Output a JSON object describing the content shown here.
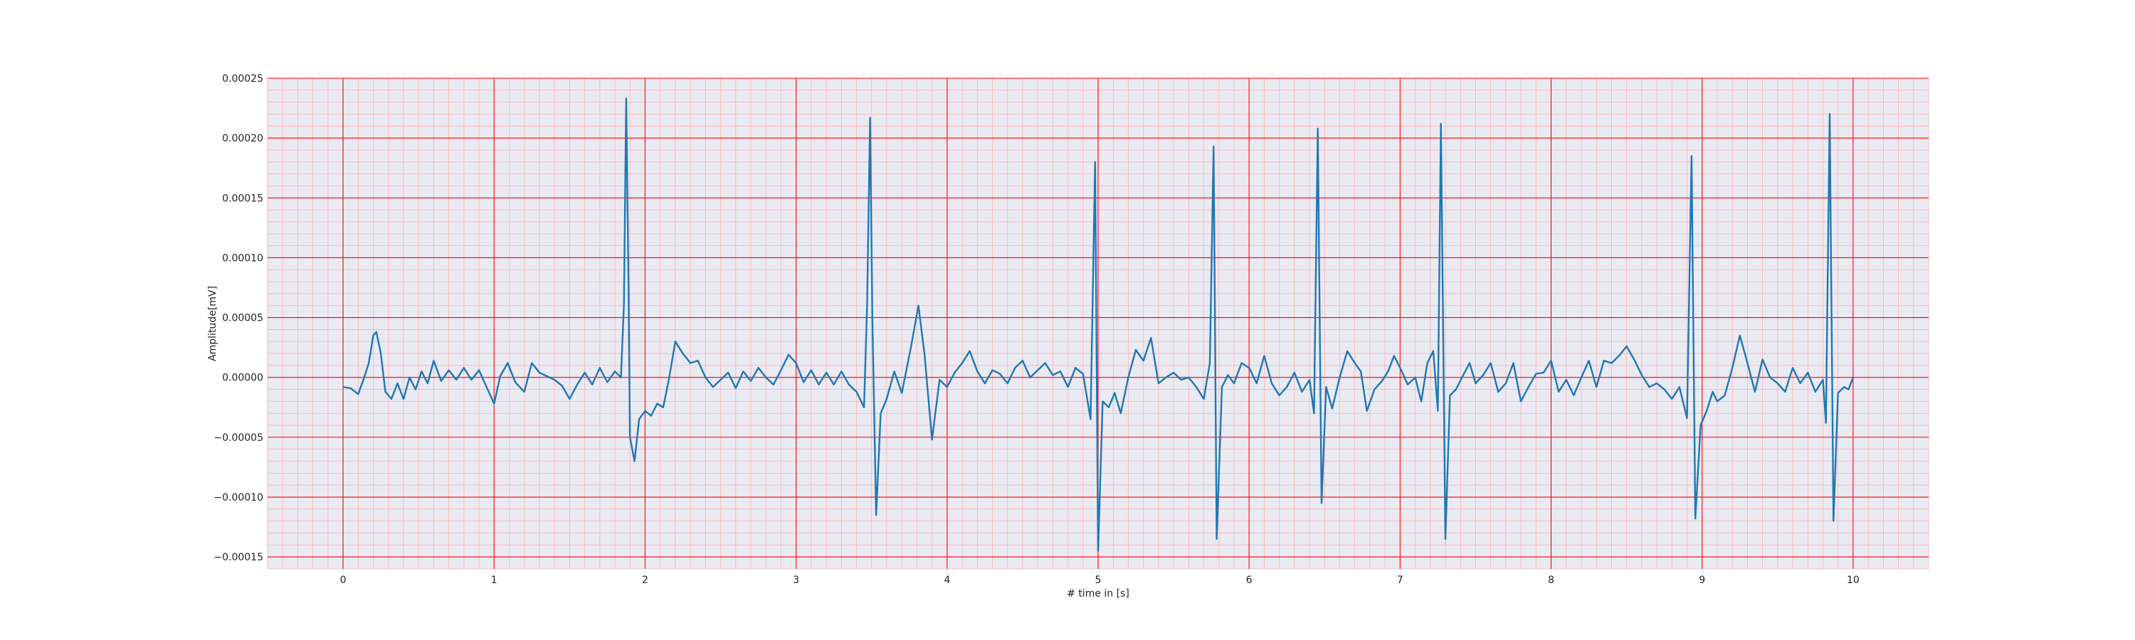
{
  "chart_data": {
    "type": "line",
    "title": "",
    "xlabel": "# time in [s]",
    "ylabel": "Amplitude[mV]",
    "xlim": [
      -0.5,
      10.5
    ],
    "ylim": [
      -0.00016,
      0.00025
    ],
    "x_ticks": [
      0,
      1,
      2,
      3,
      4,
      5,
      6,
      7,
      8,
      9,
      10
    ],
    "x_tick_labels": [
      "0",
      "1",
      "2",
      "3",
      "4",
      "5",
      "6",
      "7",
      "8",
      "9",
      "10"
    ],
    "y_ticks": [
      -0.00015,
      -0.0001,
      -5e-05,
      0,
      5e-05,
      0.0001,
      0.00015,
      0.0002,
      0.00025
    ],
    "y_tick_labels": [
      "−0.00015",
      "−0.00010",
      "−0.00005",
      "0.00000",
      "0.00005",
      "0.00010",
      "0.00015",
      "0.00020",
      "0.00025"
    ],
    "grid": "major+minor",
    "legend": "none",
    "series": [
      {
        "color": "#1f77b4",
        "points": [
          [
            0.0,
            -8e-06
          ],
          [
            0.05,
            -9e-06
          ],
          [
            0.1,
            -1.4e-05
          ],
          [
            0.14,
            0.0
          ],
          [
            0.17,
            1.2e-05
          ],
          [
            0.2,
            3.5e-05
          ],
          [
            0.22,
            3.8e-05
          ],
          [
            0.25,
            2e-05
          ],
          [
            0.28,
            -1.2e-05
          ],
          [
            0.32,
            -1.8e-05
          ],
          [
            0.36,
            -5e-06
          ],
          [
            0.4,
            -1.8e-05
          ],
          [
            0.44,
            0.0
          ],
          [
            0.48,
            -1e-05
          ],
          [
            0.52,
            5e-06
          ],
          [
            0.56,
            -5e-06
          ],
          [
            0.6,
            1.4e-05
          ],
          [
            0.65,
            -3e-06
          ],
          [
            0.7,
            6e-06
          ],
          [
            0.75,
            -2e-06
          ],
          [
            0.8,
            8e-06
          ],
          [
            0.85,
            -2e-06
          ],
          [
            0.9,
            6e-06
          ],
          [
            0.95,
            -8e-06
          ],
          [
            1.0,
            -2.2e-05
          ],
          [
            1.04,
            1e-06
          ],
          [
            1.09,
            1.2e-05
          ],
          [
            1.14,
            -4e-06
          ],
          [
            1.2,
            -1.2e-05
          ],
          [
            1.25,
            1.2e-05
          ],
          [
            1.3,
            4e-06
          ],
          [
            1.35,
            1e-06
          ],
          [
            1.4,
            -2e-06
          ],
          [
            1.45,
            -7e-06
          ],
          [
            1.5,
            -1.8e-05
          ],
          [
            1.55,
            -6e-06
          ],
          [
            1.6,
            4e-06
          ],
          [
            1.65,
            -6e-06
          ],
          [
            1.7,
            8e-06
          ],
          [
            1.75,
            -4e-06
          ],
          [
            1.8,
            5e-06
          ],
          [
            1.84,
            0.0
          ],
          [
            1.86,
            6e-05
          ],
          [
            1.875,
            0.000233
          ],
          [
            1.89,
            8e-05
          ],
          [
            1.9,
            -5e-05
          ],
          [
            1.93,
            -7e-05
          ],
          [
            1.96,
            -3.5e-05
          ],
          [
            2.0,
            -2.8e-05
          ],
          [
            2.04,
            -3.2e-05
          ],
          [
            2.08,
            -2.2e-05
          ],
          [
            2.12,
            -2.5e-05
          ],
          [
            2.16,
            0.0
          ],
          [
            2.2,
            3e-05
          ],
          [
            2.25,
            2e-05
          ],
          [
            2.3,
            1.2e-05
          ],
          [
            2.35,
            1.4e-05
          ],
          [
            2.4,
            0.0
          ],
          [
            2.45,
            -8e-06
          ],
          [
            2.5,
            -2e-06
          ],
          [
            2.55,
            4e-06
          ],
          [
            2.6,
            -9e-06
          ],
          [
            2.65,
            5e-06
          ],
          [
            2.7,
            -3e-06
          ],
          [
            2.75,
            8e-06
          ],
          [
            2.8,
            0.0
          ],
          [
            2.85,
            -6e-06
          ],
          [
            2.9,
            6e-06
          ],
          [
            2.95,
            1.9e-05
          ],
          [
            3.0,
            1.2e-05
          ],
          [
            3.05,
            -4e-06
          ],
          [
            3.1,
            6e-06
          ],
          [
            3.15,
            -6e-06
          ],
          [
            3.2,
            4e-06
          ],
          [
            3.25,
            -6e-06
          ],
          [
            3.3,
            5e-06
          ],
          [
            3.35,
            -6e-06
          ],
          [
            3.4,
            -1.2e-05
          ],
          [
            3.45,
            -2.5e-05
          ],
          [
            3.47,
            6e-05
          ],
          [
            3.49,
            0.000217
          ],
          [
            3.505,
            5e-05
          ],
          [
            3.53,
            -0.000115
          ],
          [
            3.56,
            -3e-05
          ],
          [
            3.6,
            -1.8e-05
          ],
          [
            3.65,
            5e-06
          ],
          [
            3.7,
            -1.3e-05
          ],
          [
            3.76,
            2.5e-05
          ],
          [
            3.81,
            6e-05
          ],
          [
            3.85,
            2e-05
          ],
          [
            3.9,
            -5.2e-05
          ],
          [
            3.95,
            -2e-06
          ],
          [
            4.0,
            -8e-06
          ],
          [
            4.05,
            4e-06
          ],
          [
            4.1,
            1.2e-05
          ],
          [
            4.15,
            2.2e-05
          ],
          [
            4.2,
            5e-06
          ],
          [
            4.25,
            -5e-06
          ],
          [
            4.3,
            6e-06
          ],
          [
            4.35,
            3e-06
          ],
          [
            4.4,
            -5e-06
          ],
          [
            4.45,
            8e-06
          ],
          [
            4.5,
            1.4e-05
          ],
          [
            4.55,
            0.0
          ],
          [
            4.6,
            6e-06
          ],
          [
            4.65,
            1.2e-05
          ],
          [
            4.7,
            2e-06
          ],
          [
            4.75,
            5e-06
          ],
          [
            4.8,
            -8e-06
          ],
          [
            4.85,
            8e-06
          ],
          [
            4.9,
            3e-06
          ],
          [
            4.95,
            -3.5e-05
          ],
          [
            4.98,
            0.00018
          ],
          [
            5.0,
            -0.000145
          ],
          [
            5.03,
            -2e-05
          ],
          [
            5.07,
            -2.5e-05
          ],
          [
            5.11,
            -1.3e-05
          ],
          [
            5.15,
            -3e-05
          ],
          [
            5.2,
            0.0
          ],
          [
            5.25,
            2.3e-05
          ],
          [
            5.3,
            1.4e-05
          ],
          [
            5.35,
            3.3e-05
          ],
          [
            5.4,
            -5e-06
          ],
          [
            5.45,
            0.0
          ],
          [
            5.5,
            4e-06
          ],
          [
            5.55,
            -2e-06
          ],
          [
            5.6,
            0.0
          ],
          [
            5.65,
            -8e-06
          ],
          [
            5.7,
            -1.8e-05
          ],
          [
            5.74,
            1.2e-05
          ],
          [
            5.765,
            0.000193
          ],
          [
            5.785,
            -0.000135
          ],
          [
            5.82,
            -8e-06
          ],
          [
            5.86,
            2e-06
          ],
          [
            5.9,
            -5e-06
          ],
          [
            5.95,
            1.2e-05
          ],
          [
            6.0,
            8e-06
          ],
          [
            6.05,
            -5e-06
          ],
          [
            6.1,
            1.8e-05
          ],
          [
            6.15,
            -5e-06
          ],
          [
            6.2,
            -1.5e-05
          ],
          [
            6.25,
            -8e-06
          ],
          [
            6.3,
            4e-06
          ],
          [
            6.35,
            -1.2e-05
          ],
          [
            6.4,
            -2e-06
          ],
          [
            6.43,
            -3e-05
          ],
          [
            6.455,
            0.000208
          ],
          [
            6.48,
            -0.000105
          ],
          [
            6.51,
            -8e-06
          ],
          [
            6.55,
            -2.6e-05
          ],
          [
            6.6,
            0.0
          ],
          [
            6.65,
            2.2e-05
          ],
          [
            6.7,
            1.2e-05
          ],
          [
            6.74,
            5e-06
          ],
          [
            6.78,
            -2.8e-05
          ],
          [
            6.83,
            -1e-05
          ],
          [
            6.88,
            -3e-06
          ],
          [
            6.92,
            5e-06
          ],
          [
            6.96,
            1.8e-05
          ],
          [
            7.0,
            8e-06
          ],
          [
            7.05,
            -6e-06
          ],
          [
            7.1,
            0.0
          ],
          [
            7.14,
            -2e-05
          ],
          [
            7.18,
            1.2e-05
          ],
          [
            7.22,
            2.2e-05
          ],
          [
            7.25,
            -2.8e-05
          ],
          [
            7.27,
            0.000212
          ],
          [
            7.3,
            -0.000135
          ],
          [
            7.33,
            -1.5e-05
          ],
          [
            7.37,
            -1e-05
          ],
          [
            7.41,
            0.0
          ],
          [
            7.46,
            1.2e-05
          ],
          [
            7.5,
            -5e-06
          ],
          [
            7.55,
            2e-06
          ],
          [
            7.6,
            1.2e-05
          ],
          [
            7.65,
            -1.2e-05
          ],
          [
            7.7,
            -5e-06
          ],
          [
            7.75,
            1.2e-05
          ],
          [
            7.8,
            -2e-05
          ],
          [
            7.85,
            -8e-06
          ],
          [
            7.9,
            3e-06
          ],
          [
            7.95,
            4e-06
          ],
          [
            8.0,
            1.4e-05
          ],
          [
            8.05,
            -1.2e-05
          ],
          [
            8.1,
            -2e-06
          ],
          [
            8.15,
            -1.5e-05
          ],
          [
            8.2,
            0.0
          ],
          [
            8.25,
            1.4e-05
          ],
          [
            8.3,
            -8e-06
          ],
          [
            8.35,
            1.4e-05
          ],
          [
            8.4,
            1.2e-05
          ],
          [
            8.45,
            1.8e-05
          ],
          [
            8.5,
            2.6e-05
          ],
          [
            8.55,
            1.5e-05
          ],
          [
            8.6,
            2e-06
          ],
          [
            8.65,
            -8e-06
          ],
          [
            8.7,
            -5e-06
          ],
          [
            8.75,
            -1e-05
          ],
          [
            8.8,
            -1.8e-05
          ],
          [
            8.85,
            -8e-06
          ],
          [
            8.9,
            -3.4e-05
          ],
          [
            8.93,
            0.000185
          ],
          [
            8.955,
            -0.000118
          ],
          [
            8.99,
            -4e-05
          ],
          [
            9.03,
            -2.8e-05
          ],
          [
            9.07,
            -1.2e-05
          ],
          [
            9.1,
            -2e-05
          ],
          [
            9.15,
            -1.5e-05
          ],
          [
            9.2,
            8e-06
          ],
          [
            9.25,
            3.5e-05
          ],
          [
            9.3,
            1.2e-05
          ],
          [
            9.35,
            -1.2e-05
          ],
          [
            9.4,
            1.5e-05
          ],
          [
            9.45,
            0.0
          ],
          [
            9.5,
            -5e-06
          ],
          [
            9.55,
            -1.2e-05
          ],
          [
            9.6,
            8e-06
          ],
          [
            9.65,
            -5e-06
          ],
          [
            9.7,
            4e-06
          ],
          [
            9.75,
            -1.2e-05
          ],
          [
            9.8,
            -2e-06
          ],
          [
            9.82,
            -3.8e-05
          ],
          [
            9.845,
            0.00022
          ],
          [
            9.87,
            -0.00012
          ],
          [
            9.9,
            -1.3e-05
          ],
          [
            9.94,
            -8e-06
          ],
          [
            9.97,
            -1e-05
          ],
          [
            10.0,
            0.0
          ]
        ]
      }
    ]
  },
  "colors": {
    "plot_background": "#eaeaf2",
    "major_grid": "#ff0000",
    "minor_grid": "#ffb0b0",
    "line": "#1f77b4"
  }
}
